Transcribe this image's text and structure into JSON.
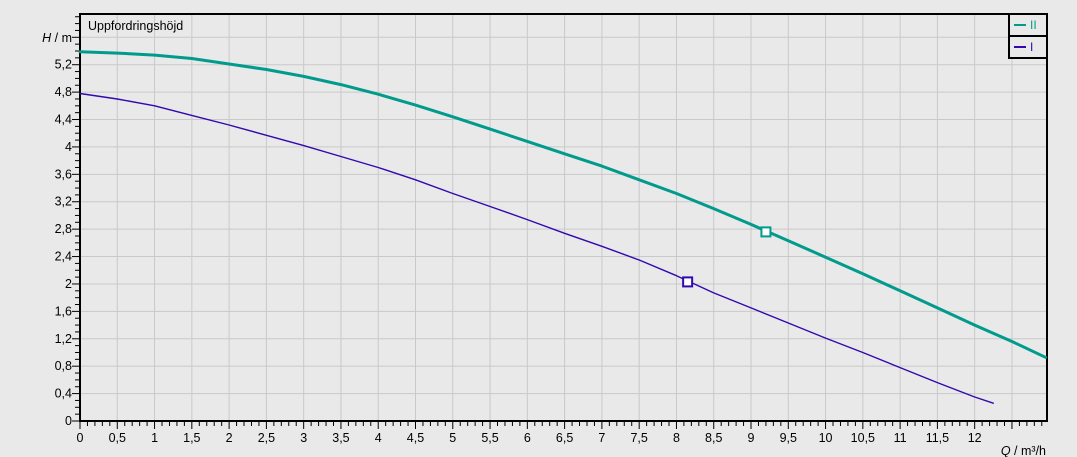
{
  "colors": {
    "background": "#e9e9e9",
    "grid": "#c9c9c9",
    "axis": "#000000",
    "text": "#000000",
    "curve_ii": "#009b8c",
    "curve_i": "#3407b0"
  },
  "chart": {
    "title": "Uppfordringshöjd",
    "y_axis_symbol": "H",
    "y_axis_rest": " / m",
    "x_axis_symbol": "Q",
    "x_axis_rest": " / m³/h"
  },
  "legend": {
    "position": "top-right",
    "items": [
      {
        "label": "II",
        "color": "#009b8c"
      },
      {
        "label": "I",
        "color": "#3407b0"
      }
    ]
  },
  "chart_data": {
    "type": "line",
    "title": "Uppfordringshöjd",
    "xlabel": "Q / m³/h",
    "ylabel": "H / m",
    "xlim": [
      0,
      12.97
    ],
    "ylim": [
      0,
      5.94
    ],
    "x_major_step": 0.5,
    "x_minor_step": 0.1,
    "y_major_step": 0.4,
    "y_minor_step": 0.1,
    "grid": true,
    "legend_position": "top-right",
    "x_tick_labels": [
      "0",
      "0,5",
      "1",
      "1,5",
      "2",
      "2,5",
      "3",
      "3,5",
      "4",
      "4,5",
      "5",
      "5,5",
      "6",
      "6,5",
      "7",
      "7,5",
      "8",
      "8,5",
      "9",
      "9,5",
      "10",
      "10,5",
      "11",
      "11,5",
      "12"
    ],
    "y_tick_labels": [
      "0",
      "0,4",
      "0,8",
      "1,2",
      "1,6",
      "2",
      "2,4",
      "2,8",
      "3,2",
      "3,6",
      "4",
      "4,4",
      "4,8",
      "5,2"
    ],
    "series": [
      {
        "name": "II",
        "color": "#009b8c",
        "width": 3,
        "points": [
          [
            0,
            5.39
          ],
          [
            0.5,
            5.37
          ],
          [
            1,
            5.34
          ],
          [
            1.5,
            5.29
          ],
          [
            2,
            5.21
          ],
          [
            2.5,
            5.13
          ],
          [
            3,
            5.03
          ],
          [
            3.5,
            4.91
          ],
          [
            4,
            4.77
          ],
          [
            4.5,
            4.61
          ],
          [
            5,
            4.44
          ],
          [
            5.5,
            4.26
          ],
          [
            6,
            4.08
          ],
          [
            6.5,
            3.9
          ],
          [
            7,
            3.72
          ],
          [
            7.5,
            3.52
          ],
          [
            8,
            3.32
          ],
          [
            8.5,
            3.1
          ],
          [
            9,
            2.87
          ],
          [
            9.5,
            2.63
          ],
          [
            10,
            2.39
          ],
          [
            10.5,
            2.15
          ],
          [
            11,
            1.9
          ],
          [
            11.5,
            1.65
          ],
          [
            12,
            1.4
          ],
          [
            12.5,
            1.16
          ],
          [
            12.95,
            0.93
          ]
        ],
        "duty_point": [
          9.2,
          2.76
        ]
      },
      {
        "name": "I",
        "color": "#3407b0",
        "width": 1.4,
        "points": [
          [
            0,
            4.78
          ],
          [
            0.5,
            4.7
          ],
          [
            1,
            4.6
          ],
          [
            1.5,
            4.46
          ],
          [
            2,
            4.32
          ],
          [
            2.5,
            4.17
          ],
          [
            3,
            4.02
          ],
          [
            3.5,
            3.86
          ],
          [
            4,
            3.7
          ],
          [
            4.5,
            3.52
          ],
          [
            5,
            3.32
          ],
          [
            5.5,
            3.13
          ],
          [
            6,
            2.94
          ],
          [
            6.5,
            2.74
          ],
          [
            7,
            2.55
          ],
          [
            7.5,
            2.35
          ],
          [
            8,
            2.12
          ],
          [
            8.5,
            1.87
          ],
          [
            9,
            1.65
          ],
          [
            9.5,
            1.43
          ],
          [
            10,
            1.21
          ],
          [
            10.5,
            1.0
          ],
          [
            11,
            0.78
          ],
          [
            11.5,
            0.56
          ],
          [
            12,
            0.35
          ],
          [
            12.25,
            0.26
          ]
        ],
        "duty_point": [
          8.15,
          2.03
        ]
      }
    ]
  }
}
